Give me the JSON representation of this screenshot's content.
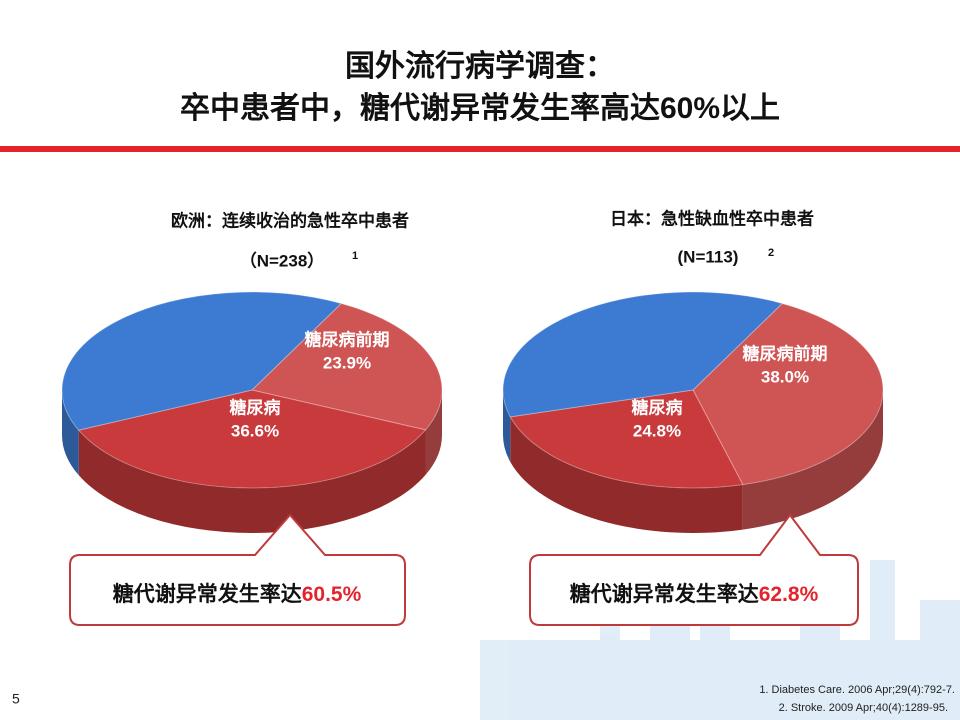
{
  "title": [
    "国外流行病学调查：",
    "卒中患者中，糖代谢异常发生率高达60%以上"
  ],
  "chart_data": [
    {
      "type": "pie",
      "title": "欧洲：连续收治的急性卒中患者",
      "subtitle": "（N=238）",
      "note_ref": "1",
      "categories": [
        "糖尿病前期",
        "糖尿病",
        null
      ],
      "values": [
        23.9,
        36.6,
        39.5
      ],
      "value_labels": [
        "23.9%",
        "36.6%",
        null
      ],
      "colors": [
        "#cf5555",
        "#c93a3c",
        "#3d7bd2"
      ]
    },
    {
      "type": "pie",
      "title": "日本：急性缺血性卒中患者",
      "subtitle": "(N=113)",
      "note_ref": "2",
      "categories": [
        "糖尿病前期",
        "糖尿病",
        null
      ],
      "values": [
        38.0,
        24.8,
        37.2
      ],
      "value_labels": [
        "38.0%",
        "24.8%",
        null
      ],
      "colors": [
        "#cf5555",
        "#c93a3c",
        "#3d7bd2"
      ]
    }
  ],
  "callouts": [
    {
      "text": "糖代谢异常发生率达",
      "highlight": "60.5%"
    },
    {
      "text": "糖代谢异常发生率达",
      "highlight": "62.8%"
    }
  ],
  "footnotes": [
    "1. Diabetes Care. 2006 Apr;29(4):792-7.",
    "2. Stroke. 2009 Apr;40(4):1289-95."
  ],
  "page_number": "5"
}
